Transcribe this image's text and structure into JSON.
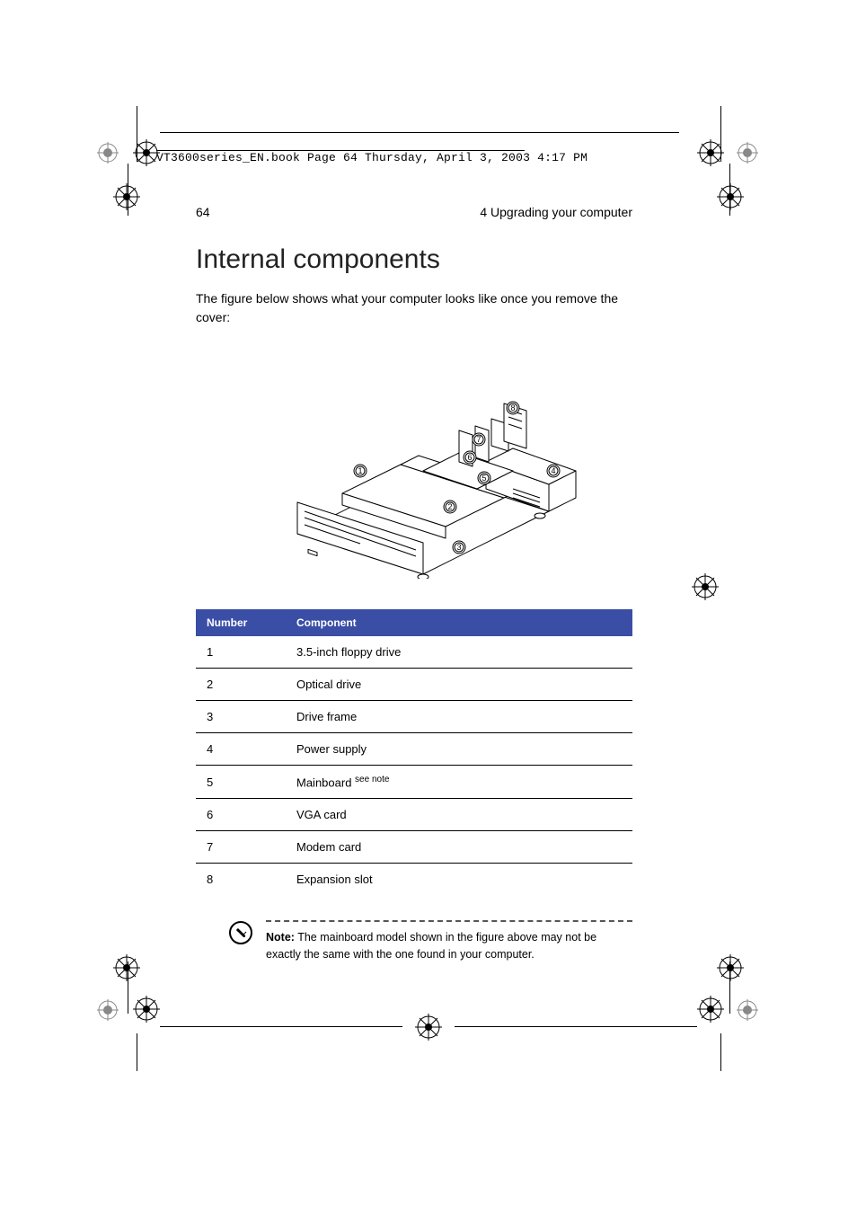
{
  "header_path": "VT3600series_EN.book  Page 64  Thursday, April 3, 2003  4:17 PM",
  "page_number": "64",
  "section_name": "4 Upgrading your computer",
  "title": "Internal components",
  "intro": "The figure below shows what your computer looks like once you remove the cover:",
  "figure": {
    "callouts": [
      1,
      2,
      3,
      4,
      5,
      6,
      7,
      8
    ],
    "line_color": "#000000",
    "callout_bg": "#ffffff",
    "callout_border": "#000000"
  },
  "table": {
    "header_bg": "#3b4ea6",
    "header_fg": "#ffffff",
    "row_border": "#000000",
    "columns": [
      "Number",
      "Component"
    ],
    "rows": [
      {
        "num": "1",
        "comp": "3.5-inch floppy drive",
        "sup": ""
      },
      {
        "num": "2",
        "comp": "Optical drive",
        "sup": ""
      },
      {
        "num": "3",
        "comp": "Drive frame",
        "sup": ""
      },
      {
        "num": "4",
        "comp": "Power supply",
        "sup": ""
      },
      {
        "num": "5",
        "comp": "Mainboard ",
        "sup": "see note"
      },
      {
        "num": "6",
        "comp": "VGA card",
        "sup": ""
      },
      {
        "num": "7",
        "comp": "Modem card",
        "sup": ""
      },
      {
        "num": "8",
        "comp": "Expansion slot",
        "sup": ""
      }
    ]
  },
  "note": {
    "label": "Note:",
    "text": "  The mainboard model shown in the figure above may not be exactly the same with the one found in your computer.",
    "icon_color": "#000000"
  },
  "crop_marks": {
    "color": "#000000"
  }
}
